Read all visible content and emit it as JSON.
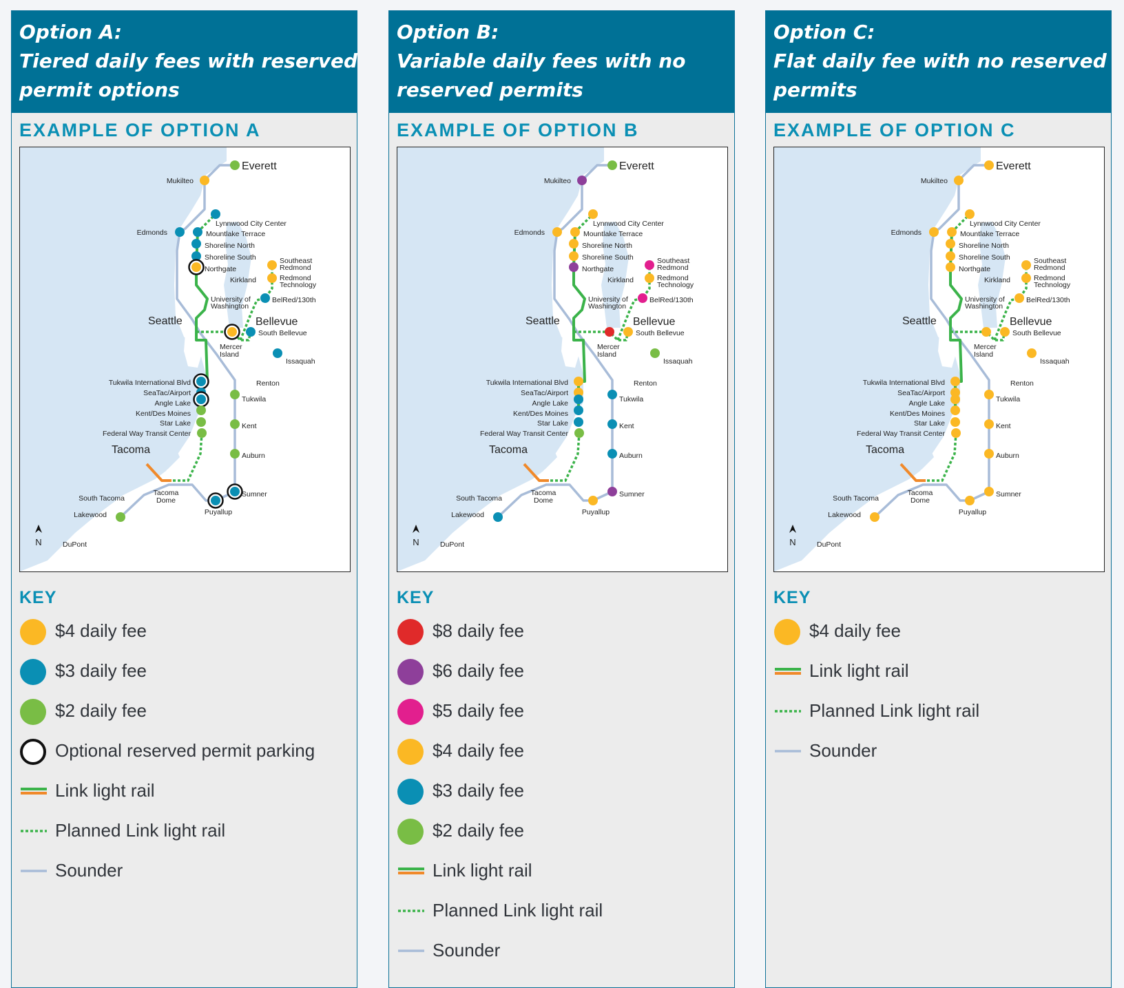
{
  "colors": {
    "header_bg": "#007196",
    "accent_text": "#0a8fb4",
    "water": "#d6e6f4",
    "link": "#3bb34a",
    "link_tacoma": "#f0892a",
    "sounder": "#a8bcd8",
    "fee8": "#e02a2a",
    "fee6": "#8e3f9a",
    "fee5": "#e21f8e",
    "fee4": "#fbb824",
    "fee3": "#0a8fb4",
    "fee2": "#79bd45"
  },
  "map_labels": {
    "cities": {
      "everett": "Everett",
      "seattle": "Seattle",
      "bellevue": "Bellevue",
      "tacoma": "Tacoma"
    },
    "stations": {
      "mukilteo": "Mukilteo",
      "edmonds": "Edmonds",
      "lynnwood": "Lynnwood City Center",
      "mountlake": "Mountlake Terrace",
      "shoreline_n": "Shoreline North",
      "shoreline_s": "Shoreline South",
      "northgate": "Northgate",
      "kirkland": "Kirkland",
      "se_redmond_1": "Southeast",
      "se_redmond_2": "Redmond",
      "redmond_tech_1": "Redmond",
      "redmond_tech_2": "Technology",
      "uw_1": "University of",
      "uw_2": "Washington",
      "belred": "BelRed/130th",
      "south_bellevue": "South Bellevue",
      "mercer_1": "Mercer",
      "mercer_2": "Island",
      "issaquah": "Issaquah",
      "tukwila_intl": "Tukwila International Blvd",
      "renton": "Renton",
      "seatac": "SeaTac/Airport",
      "tukwila": "Tukwila",
      "angle_lake": "Angle Lake",
      "kent_des_moines": "Kent/Des Moines",
      "star_lake": "Star Lake",
      "kent": "Kent",
      "federal_way": "Federal Way Transit Center",
      "auburn": "Auburn",
      "sumner": "Sumner",
      "south_tacoma": "South Tacoma",
      "tacoma_dome_1": "Tacoma",
      "tacoma_dome_2": "Dome",
      "puyallup": "Puyallup",
      "lakewood": "Lakewood",
      "dupont": "DuPont",
      "north": "N"
    }
  },
  "panels": [
    {
      "id": "a",
      "heading": [
        "Option A:",
        "Tiered daily fees with reserved",
        "permit options"
      ],
      "example_title": "EXAMPLE OF OPTION A",
      "key_title": "KEY",
      "station_fees": {
        "everett": "fee2",
        "mukilteo": "fee4",
        "edmonds": "fee3",
        "lynnwood": "fee3",
        "mountlake": "fee3",
        "shoreline_n": "fee3",
        "shoreline_s": "fee3",
        "northgate": "fee4",
        "se_redmond": "fee4",
        "redmond_tech": "fee4",
        "belred": "fee3",
        "mercer": "fee4",
        "south_bellevue": "fee3",
        "issaquah": "fee3",
        "tukwila_intl": "fee3",
        "seatac": "fee3",
        "angle_lake": "fee3",
        "kent_des_moines": "fee2",
        "star_lake": "fee2",
        "federal_way": "fee2",
        "tukwila": "fee2",
        "kent": "fee2",
        "auburn": "fee2",
        "sumner": "fee3",
        "puyallup": "fee3",
        "lakewood": "fee2"
      },
      "reserved_permit_stations": [
        "northgate",
        "mercer",
        "tukwila_intl",
        "angle_lake",
        "sumner",
        "puyallup"
      ],
      "key": [
        {
          "symbol": "fee4",
          "label": "$4 daily fee"
        },
        {
          "symbol": "fee3",
          "label": "$3 daily fee"
        },
        {
          "symbol": "fee2",
          "label": "$2 daily fee"
        },
        {
          "symbol": "ring",
          "label": "Optional reserved permit parking"
        },
        {
          "symbol": "link",
          "label": "Link light rail"
        },
        {
          "symbol": "planned",
          "label": "Planned Link light rail"
        },
        {
          "symbol": "sounder",
          "label": "Sounder"
        }
      ]
    },
    {
      "id": "b",
      "heading": [
        "Option B:",
        "Variable daily fees with no",
        "reserved permits"
      ],
      "example_title": "EXAMPLE OF OPTION B",
      "key_title": "KEY",
      "station_fees": {
        "everett": "fee2",
        "mukilteo": "fee6",
        "edmonds": "fee4",
        "lynnwood": "fee4",
        "mountlake": "fee4",
        "shoreline_n": "fee4",
        "shoreline_s": "fee4",
        "northgate": "fee6",
        "se_redmond": "fee5",
        "redmond_tech": "fee4",
        "belred": "fee5",
        "mercer": "fee8",
        "south_bellevue": "fee4",
        "issaquah": "fee2",
        "tukwila_intl": "fee4",
        "seatac": "fee4",
        "angle_lake": "fee3",
        "kent_des_moines": "fee3",
        "star_lake": "fee3",
        "federal_way": "fee2",
        "tukwila": "fee3",
        "kent": "fee3",
        "auburn": "fee3",
        "sumner": "fee6",
        "puyallup": "fee4",
        "lakewood": "fee3"
      },
      "reserved_permit_stations": [],
      "key": [
        {
          "symbol": "fee8",
          "label": "$8 daily fee"
        },
        {
          "symbol": "fee6",
          "label": "$6 daily fee"
        },
        {
          "symbol": "fee5",
          "label": "$5 daily fee"
        },
        {
          "symbol": "fee4",
          "label": "$4 daily fee"
        },
        {
          "symbol": "fee3",
          "label": "$3 daily fee"
        },
        {
          "symbol": "fee2",
          "label": "$2 daily fee"
        },
        {
          "symbol": "link",
          "label": "Link light rail"
        },
        {
          "symbol": "planned",
          "label": "Planned Link light rail"
        },
        {
          "symbol": "sounder",
          "label": "Sounder"
        }
      ]
    },
    {
      "id": "c",
      "heading": [
        "Option C:",
        "Flat daily fee with no reserved",
        "permits"
      ],
      "example_title": "EXAMPLE OF OPTION C",
      "key_title": "KEY",
      "station_fees": {
        "everett": "fee4",
        "mukilteo": "fee4",
        "edmonds": "fee4",
        "lynnwood": "fee4",
        "mountlake": "fee4",
        "shoreline_n": "fee4",
        "shoreline_s": "fee4",
        "northgate": "fee4",
        "se_redmond": "fee4",
        "redmond_tech": "fee4",
        "belred": "fee4",
        "mercer": "fee4",
        "south_bellevue": "fee4",
        "issaquah": "fee4",
        "tukwila_intl": "fee4",
        "seatac": "fee4",
        "angle_lake": "fee4",
        "kent_des_moines": "fee4",
        "star_lake": "fee4",
        "federal_way": "fee4",
        "tukwila": "fee4",
        "kent": "fee4",
        "auburn": "fee4",
        "sumner": "fee4",
        "puyallup": "fee4",
        "lakewood": "fee4"
      },
      "reserved_permit_stations": [],
      "key": [
        {
          "symbol": "fee4",
          "label": "$4 daily fee"
        },
        {
          "symbol": "link",
          "label": "Link light rail"
        },
        {
          "symbol": "planned",
          "label": "Planned Link light rail"
        },
        {
          "symbol": "sounder",
          "label": "Sounder"
        }
      ]
    }
  ]
}
